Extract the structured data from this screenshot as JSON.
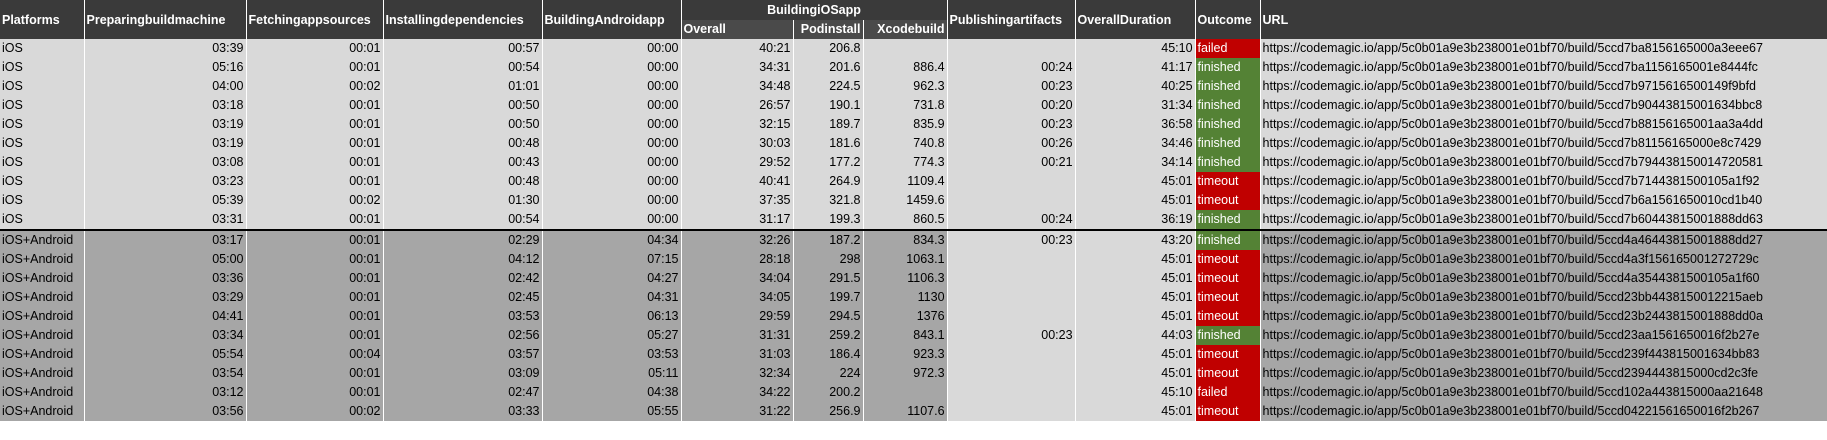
{
  "header": {
    "platforms": "Platforms",
    "preparing": "Preparing build machine",
    "fetching": "Fetching app sources",
    "installing": "Installing dependencies",
    "android": "Building Android app",
    "ios": "Building iOS app",
    "ios_overall": "Overall",
    "ios_pod": "Pod install",
    "ios_xcode": "Xcode build",
    "publishing": "Publishing artifacts",
    "duration": "Overall Duration",
    "outcome": "Outcome",
    "url": "URL"
  },
  "rows": [
    {
      "platform": "iOS",
      "preparing": "03:39",
      "fetching": "00:01",
      "installing": "00:57",
      "android": "00:00",
      "ios_overall": "40:21",
      "pod": "206.8",
      "xcode": "",
      "publishing": "",
      "duration": "45:10",
      "outcome": "failed",
      "url": "https://codemagic.io/app/5c0b01a9e3b238001e01bf70/build/5ccd7ba8156165000a3eee67"
    },
    {
      "platform": "iOS",
      "preparing": "05:16",
      "fetching": "00:01",
      "installing": "00:54",
      "android": "00:00",
      "ios_overall": "34:31",
      "pod": "201.6",
      "xcode": "886.4",
      "publishing": "00:24",
      "duration": "41:17",
      "outcome": "finished",
      "url": "https://codemagic.io/app/5c0b01a9e3b238001e01bf70/build/5ccd7ba1156165001e8444fc"
    },
    {
      "platform": "iOS",
      "preparing": "04:00",
      "fetching": "00:02",
      "installing": "01:01",
      "android": "00:00",
      "ios_overall": "34:48",
      "pod": "224.5",
      "xcode": "962.3",
      "publishing": "00:23",
      "duration": "40:25",
      "outcome": "finished",
      "url": "https://codemagic.io/app/5c0b01a9e3b238001e01bf70/build/5ccd7b9715616500149f9bfd"
    },
    {
      "platform": "iOS",
      "preparing": "03:18",
      "fetching": "00:01",
      "installing": "00:50",
      "android": "00:00",
      "ios_overall": "26:57",
      "pod": "190.1",
      "xcode": "731.8",
      "publishing": "00:20",
      "duration": "31:34",
      "outcome": "finished",
      "url": "https://codemagic.io/app/5c0b01a9e3b238001e01bf70/build/5ccd7b90443815001634bbc8"
    },
    {
      "platform": "iOS",
      "preparing": "03:19",
      "fetching": "00:01",
      "installing": "00:50",
      "android": "00:00",
      "ios_overall": "32:15",
      "pod": "189.7",
      "xcode": "835.9",
      "publishing": "00:23",
      "duration": "36:58",
      "outcome": "finished",
      "url": "https://codemagic.io/app/5c0b01a9e3b238001e01bf70/build/5ccd7b88156165001aa3a4dd"
    },
    {
      "platform": "iOS",
      "preparing": "03:19",
      "fetching": "00:01",
      "installing": "00:48",
      "android": "00:00",
      "ios_overall": "30:03",
      "pod": "181.6",
      "xcode": "740.8",
      "publishing": "00:26",
      "duration": "34:46",
      "outcome": "finished",
      "url": "https://codemagic.io/app/5c0b01a9e3b238001e01bf70/build/5ccd7b81156165000e8c7429"
    },
    {
      "platform": "iOS",
      "preparing": "03:08",
      "fetching": "00:01",
      "installing": "00:43",
      "android": "00:00",
      "ios_overall": "29:52",
      "pod": "177.2",
      "xcode": "774.3",
      "publishing": "00:21",
      "duration": "34:14",
      "outcome": "finished",
      "url": "https://codemagic.io/app/5c0b01a9e3b238001e01bf70/build/5ccd7b7944381500147 20581"
    },
    {
      "platform": "iOS",
      "preparing": "03:23",
      "fetching": "00:01",
      "installing": "00:48",
      "android": "00:00",
      "ios_overall": "40:41",
      "pod": "264.9",
      "xcode": "1109.4",
      "publishing": "",
      "duration": "45:01",
      "outcome": "timeout",
      "url": "https://codemagic.io/app/5c0b01a9e3b238001e01bf70/build/5ccd7b7144381500105a1f92"
    },
    {
      "platform": "iOS",
      "preparing": "05:39",
      "fetching": "00:02",
      "installing": "01:30",
      "android": "00:00",
      "ios_overall": "37:35",
      "pod": "321.8",
      "xcode": "1459.6",
      "publishing": "",
      "duration": "45:01",
      "outcome": "timeout",
      "url": "https://codemagic.io/app/5c0b01a9e3b238001e01bf70/build/5ccd7b6a1561650010cd1b40"
    },
    {
      "platform": "iOS",
      "preparing": "03:31",
      "fetching": "00:01",
      "installing": "00:54",
      "android": "00:00",
      "ios_overall": "31:17",
      "pod": "199.3",
      "xcode": "860.5",
      "publishing": "00:24",
      "duration": "36:19",
      "outcome": "finished",
      "url": "https://codemagic.io/app/5c0b01a9e3b238001e01bf70/build/5ccd7b6044381500 1888dd63"
    },
    {
      "platform": "iOS+Android",
      "preparing": "03:17",
      "fetching": "00:01",
      "installing": "02:29",
      "android": "04:34",
      "ios_overall": "32:26",
      "pod": "187.2",
      "xcode": "834.3",
      "publishing": "00:23",
      "duration": "43:20",
      "outcome": "finished",
      "url": "https://codemagic.io/app/5c0b01a9e3b238001e01bf70/build/5ccd4a464438150 01888dd27"
    },
    {
      "platform": "iOS+Android",
      "preparing": "05:00",
      "fetching": "00:01",
      "installing": "04:12",
      "android": "07:15",
      "ios_overall": "28:18",
      "pod": "298",
      "xcode": "1063.1",
      "publishing": "",
      "duration": "45:01",
      "outcome": "timeout",
      "url": "https://codemagic.io/app/5c0b01a9e3b238001e01bf70/build/5ccd4a3f1561650 01272729c"
    },
    {
      "platform": "iOS+Android",
      "preparing": "03:36",
      "fetching": "00:01",
      "installing": "02:42",
      "android": "04:27",
      "ios_overall": "34:04",
      "pod": "291.5",
      "xcode": "1106.3",
      "publishing": "",
      "duration": "45:01",
      "outcome": "timeout",
      "url": "https://codemagic.io/app/5c0b01a9e3b238001e01bf70/build/5ccd4a3544381500105a1f60"
    },
    {
      "platform": "iOS+Android",
      "preparing": "03:29",
      "fetching": "00:01",
      "installing": "02:45",
      "android": "04:31",
      "ios_overall": "34:05",
      "pod": "199.7",
      "xcode": "1130",
      "publishing": "",
      "duration": "45:01",
      "outcome": "timeout",
      "url": "https://codemagic.io/app/5c0b01a9e3b238001e01bf70/build/5ccd23bb4438150012215aeb"
    },
    {
      "platform": "iOS+Android",
      "preparing": "04:41",
      "fetching": "00:01",
      "installing": "03:53",
      "android": "06:13",
      "ios_overall": "29:59",
      "pod": "294.5",
      "xcode": "1376",
      "publishing": "",
      "duration": "45:01",
      "outcome": "timeout",
      "url": "https://codemagic.io/app/5c0b01a9e3b238001e01bf70/build/5ccd23b2443815001888dd0a"
    },
    {
      "platform": "iOS+Android",
      "preparing": "03:34",
      "fetching": "00:01",
      "installing": "02:56",
      "android": "05:27",
      "ios_overall": "31:31",
      "pod": "259.2",
      "xcode": "843.1",
      "publishing": "00:23",
      "duration": "44:03",
      "outcome": "finished",
      "url": "https://codemagic.io/app/5c0b01a9e3b238001e01bf70/build/5ccd23aa1561650016f2b27e"
    },
    {
      "platform": "iOS+Android",
      "preparing": "05:54",
      "fetching": "00:04",
      "installing": "03:57",
      "android": "03:53",
      "ios_overall": "31:03",
      "pod": "186.4",
      "xcode": "923.3",
      "publishing": "",
      "duration": "45:01",
      "outcome": "timeout",
      "url": "https://codemagic.io/app/5c0b01a9e3b238001e01bf70/build/5ccd239f443815001634bb83"
    },
    {
      "platform": "iOS+Android",
      "preparing": "03:54",
      "fetching": "00:01",
      "installing": "03:09",
      "android": "05:11",
      "ios_overall": "32:34",
      "pod": "224",
      "xcode": "972.3",
      "publishing": "",
      "duration": "45:01",
      "outcome": "timeout",
      "url": "https://codemagic.io/app/5c0b01a9e3b238001e01bf70/build/5ccd2394443815000cd2c3fe"
    },
    {
      "platform": "iOS+Android",
      "preparing": "03:12",
      "fetching": "00:01",
      "installing": "02:47",
      "android": "04:38",
      "ios_overall": "34:22",
      "pod": "200.2",
      "xcode": "",
      "publishing": "",
      "duration": "45:10",
      "outcome": "failed",
      "url": "https://codemagic.io/app/5c0b01a9e3b238001e01bf70/build/5ccd102a443815000aa21648"
    },
    {
      "platform": "iOS+Android",
      "preparing": "03:56",
      "fetching": "00:02",
      "installing": "03:33",
      "android": "05:55",
      "ios_overall": "31:22",
      "pod": "256.9",
      "xcode": "1107.6",
      "publishing": "",
      "duration": "45:01",
      "outcome": "timeout",
      "url": "https://codemagic.io/app/5c0b01a9e3b238001e01bf70/build/5ccd04221561650016f2b267"
    }
  ]
}
